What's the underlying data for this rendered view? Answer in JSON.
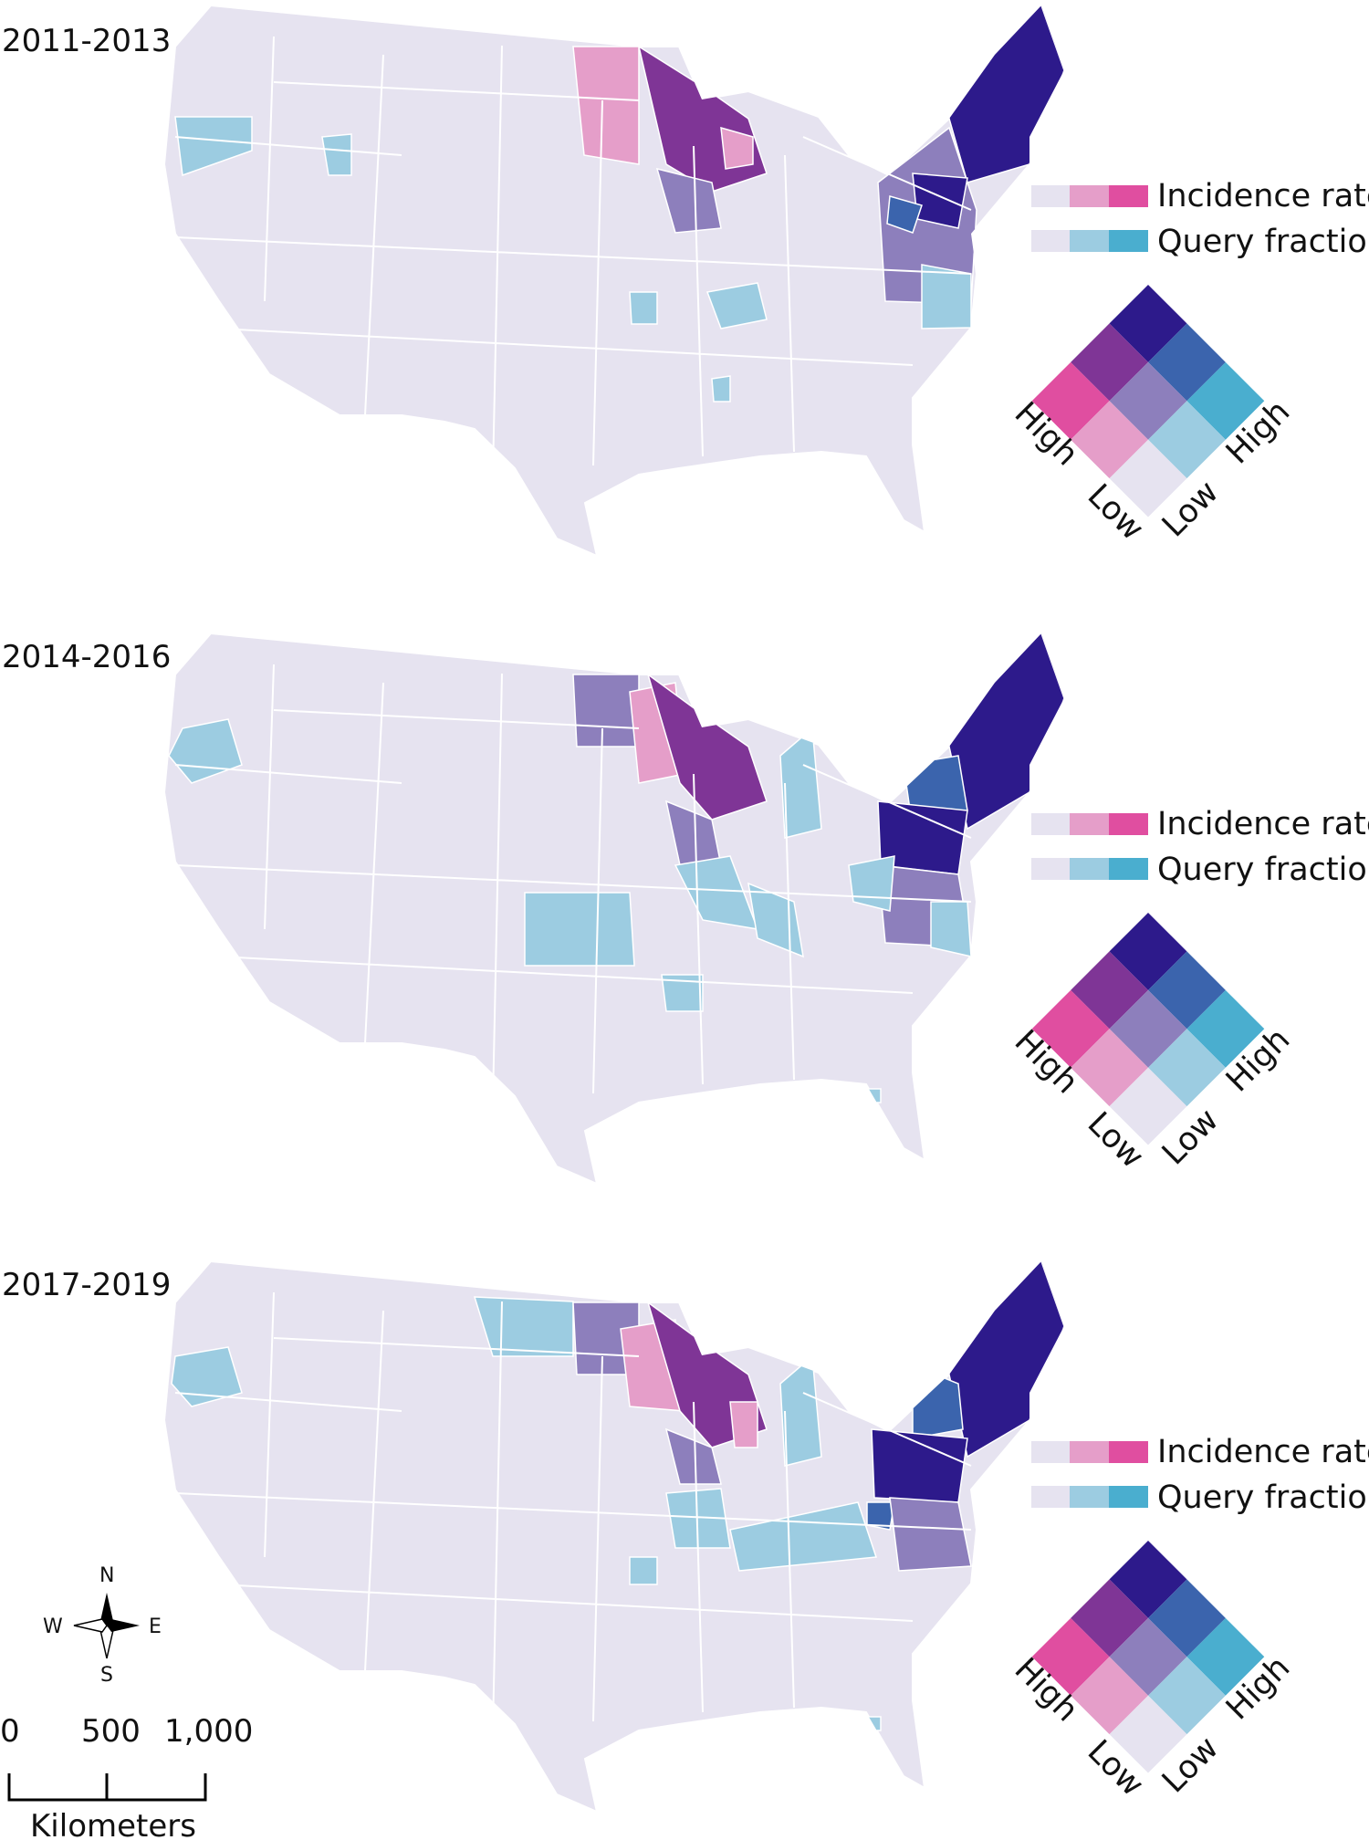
{
  "panels": [
    {
      "period": "2011-2013"
    },
    {
      "period": "2014-2016"
    },
    {
      "period": "2017-2019"
    }
  ],
  "legend": {
    "incidence_label": "Incidence rate",
    "query_label": "Query fraction",
    "high_label": "High",
    "low_label": "Low",
    "colors": {
      "low_low": "#e6e3f0",
      "incidence_mid": "#e59ec9",
      "incidence_high": "#e04ea0",
      "query_mid": "#9ccce1",
      "query_high": "#4aaecf",
      "mid_mid": "#8d7fbc",
      "incidence_high_query_mid": "#7f3596",
      "incidence_mid_query_high": "#3b64ad",
      "high_high": "#2d1a8b"
    }
  },
  "compass": {
    "n": "N",
    "s": "S",
    "e": "E",
    "w": "W"
  },
  "scale_bar": {
    "ticks": [
      "0",
      "500",
      "1,000"
    ],
    "unit": "Kilometers"
  }
}
